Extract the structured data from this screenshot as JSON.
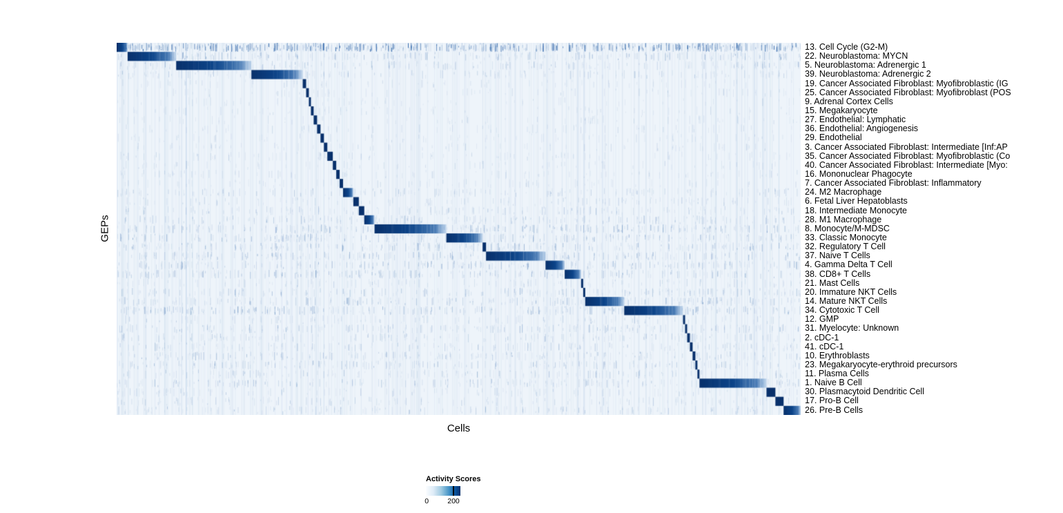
{
  "colors": {
    "background": "#eef4fa",
    "high": "#08306b",
    "low": "#f7fbff",
    "speckle": "#1955a0"
  },
  "chart_data": {
    "type": "heatmap",
    "title": "",
    "xlabel": "Cells",
    "ylabel": "GEPs",
    "colormap": "Blues (white to dark navy)",
    "colorbar": {
      "label": "Activity Scores",
      "ticks": [
        "0",
        "200"
      ],
      "range": [
        0,
        250
      ],
      "tick_mark_fraction": 0.8
    },
    "layout": {
      "n_rows": 41,
      "x_ticks": "none (individual cells, unlabeled)",
      "row_labels_position": "right",
      "legend_position": "bottom-left below plot",
      "structure": "diagonal blocks: each GEP row has one contiguous block of high-activity (~200) cells, blocks ordered left-to-right down rows; sparse low-level activity elsewhere"
    },
    "rows": [
      {
        "label": "13. Cell Cycle (G2-M)",
        "block": [
          0.0,
          0.016
        ],
        "noise": 0.85
      },
      {
        "label": "22. Neuroblastoma: MYCN",
        "block": [
          0.016,
          0.087
        ],
        "noise": 0.3
      },
      {
        "label": "5. Neuroblastoma: Adrenergic 1",
        "block": [
          0.087,
          0.197
        ],
        "noise": 0.25
      },
      {
        "label": "39. Neuroblastoma: Adrenergic 2",
        "block": [
          0.197,
          0.272
        ],
        "noise": 0.2
      },
      {
        "label": "19. Cancer Associated Fibroblast: Myofibroblastic (IG",
        "block": [
          0.272,
          0.277
        ],
        "noise": 0.1
      },
      {
        "label": "25. Cancer Associated Fibroblast: Myofibroblast (POS",
        "block": [
          0.277,
          0.281
        ],
        "noise": 0.1
      },
      {
        "label": "9. Adrenal Cortex Cells",
        "block": [
          0.281,
          0.284
        ],
        "noise": 0.08
      },
      {
        "label": "15. Megakaryocyte",
        "block": [
          0.284,
          0.288
        ],
        "noise": 0.1
      },
      {
        "label": "27. Endothelial: Lymphatic",
        "block": [
          0.288,
          0.293
        ],
        "noise": 0.1
      },
      {
        "label": "36. Endothelial: Angiogenesis",
        "block": [
          0.293,
          0.298
        ],
        "noise": 0.1
      },
      {
        "label": "29. Endothelial",
        "block": [
          0.298,
          0.303
        ],
        "noise": 0.1
      },
      {
        "label": "3. Cancer Associated Fibroblast: Intermediate [Inf:AP",
        "block": [
          0.303,
          0.308
        ],
        "noise": 0.1
      },
      {
        "label": "35. Cancer Associated Fibroblast: Myofibroblastic (Co",
        "block": [
          0.308,
          0.316
        ],
        "noise": 0.12
      },
      {
        "label": "40. Cancer Associated Fibroblast: Intermediate [Myo:",
        "block": [
          0.316,
          0.321
        ],
        "noise": 0.1
      },
      {
        "label": "16. Mononuclear Phagocyte",
        "block": [
          0.321,
          0.326
        ],
        "noise": 0.12
      },
      {
        "label": "7. Cancer Associated Fibroblast: Inflammatory",
        "block": [
          0.326,
          0.331
        ],
        "noise": 0.1
      },
      {
        "label": "24. M2 Macrophage",
        "block": [
          0.331,
          0.346
        ],
        "noise": 0.2
      },
      {
        "label": "6. Fetal Liver Hepatoblasts",
        "block": [
          0.346,
          0.354
        ],
        "noise": 0.15
      },
      {
        "label": "18. Intermediate Monocyte",
        "block": [
          0.354,
          0.362
        ],
        "noise": 0.2
      },
      {
        "label": "28. M1 Macrophage",
        "block": [
          0.362,
          0.377
        ],
        "noise": 0.25
      },
      {
        "label": "8. Monocyte/M-MDSC",
        "block": [
          0.377,
          0.482
        ],
        "noise": 0.35
      },
      {
        "label": "33. Classic Monocyte",
        "block": [
          0.482,
          0.535
        ],
        "noise": 0.3
      },
      {
        "label": "32. Regulatory T Cell",
        "block": [
          0.535,
          0.54
        ],
        "noise": 0.3
      },
      {
        "label": "37. Naive T Cells",
        "block": [
          0.54,
          0.627
        ],
        "noise": 0.3
      },
      {
        "label": "4. Gamma Delta T Cell",
        "block": [
          0.627,
          0.655
        ],
        "noise": 0.3
      },
      {
        "label": "38. CD8+ T Cells",
        "block": [
          0.655,
          0.679
        ],
        "noise": 0.3
      },
      {
        "label": "21. Mast Cells",
        "block": [
          0.679,
          0.682
        ],
        "noise": 0.15
      },
      {
        "label": "20. Immature NKT Cells",
        "block": [
          0.682,
          0.685
        ],
        "noise": 0.25
      },
      {
        "label": "14. Mature NKT Cells",
        "block": [
          0.685,
          0.742
        ],
        "noise": 0.3
      },
      {
        "label": "34. Cytotoxic T Cell",
        "block": [
          0.742,
          0.828
        ],
        "noise": 0.35
      },
      {
        "label": "12. GMP",
        "block": [
          0.828,
          0.831
        ],
        "noise": 0.15
      },
      {
        "label": "31. Myelocyte: Unknown",
        "block": [
          0.831,
          0.834
        ],
        "noise": 0.25
      },
      {
        "label": "2. cDC-1",
        "block": [
          0.834,
          0.838
        ],
        "noise": 0.2
      },
      {
        "label": "41. cDC-1",
        "block": [
          0.838,
          0.842
        ],
        "noise": 0.2
      },
      {
        "label": "10. Erythroblasts",
        "block": [
          0.842,
          0.846
        ],
        "noise": 0.25
      },
      {
        "label": "23. Megakaryocyte-erythroid precursors",
        "block": [
          0.846,
          0.849
        ],
        "noise": 0.25
      },
      {
        "label": "11. Plasma Cells",
        "block": [
          0.849,
          0.852
        ],
        "noise": 0.2
      },
      {
        "label": "1. Naive B Cell",
        "block": [
          0.852,
          0.95
        ],
        "noise": 0.25
      },
      {
        "label": "30. Plasmacytoid Dendritic Cell",
        "block": [
          0.95,
          0.963
        ],
        "noise": 0.15
      },
      {
        "label": "17. Pro-B Cell",
        "block": [
          0.963,
          0.975
        ],
        "noise": 0.15
      },
      {
        "label": "26. Pre-B Cells",
        "block": [
          0.975,
          1.0
        ],
        "noise": 0.2
      }
    ]
  }
}
